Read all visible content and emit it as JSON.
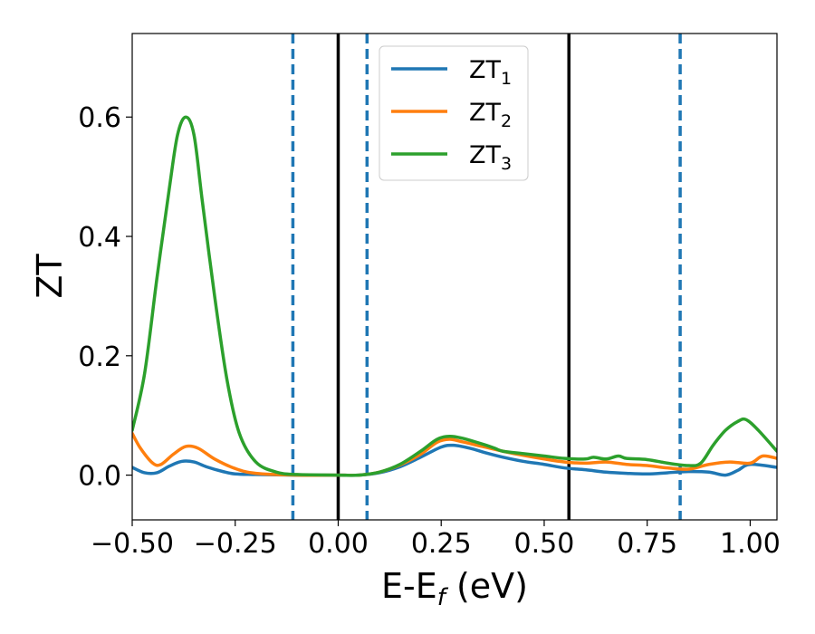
{
  "chart_data": {
    "type": "line",
    "xlabel": {
      "main": "E-E",
      "sub": "f",
      "suffix": " (eV)"
    },
    "ylabel": "ZT",
    "xlim": [
      -0.5,
      1.065
    ],
    "ylim": [
      -0.075,
      0.74
    ],
    "xticks": [
      {
        "value": -0.5,
        "label": "−0.50"
      },
      {
        "value": -0.25,
        "label": "−0.25"
      },
      {
        "value": 0.0,
        "label": "0.00"
      },
      {
        "value": 0.25,
        "label": "0.25"
      },
      {
        "value": 0.5,
        "label": "0.50"
      },
      {
        "value": 0.75,
        "label": "0.75"
      },
      {
        "value": 1.0,
        "label": "1.00"
      }
    ],
    "yticks": [
      {
        "value": 0.0,
        "label": "0.0"
      },
      {
        "value": 0.2,
        "label": "0.2"
      },
      {
        "value": 0.4,
        "label": "0.4"
      },
      {
        "value": 0.6,
        "label": "0.6"
      }
    ],
    "grid": false,
    "legend_position": "top-center",
    "vlines_solid": [
      0.0,
      0.56
    ],
    "vlines_dashed": [
      -0.11,
      0.07,
      0.83
    ],
    "series": [
      {
        "name": "ZT",
        "sub": "1",
        "color": "#1f77b4",
        "points": [
          [
            -0.5,
            0.013
          ],
          [
            -0.47,
            0.004
          ],
          [
            -0.44,
            0.004
          ],
          [
            -0.41,
            0.015
          ],
          [
            -0.38,
            0.023
          ],
          [
            -0.35,
            0.022
          ],
          [
            -0.32,
            0.014
          ],
          [
            -0.28,
            0.006
          ],
          [
            -0.25,
            0.002
          ],
          [
            -0.2,
            0.001
          ],
          [
            -0.1,
            0.0
          ],
          [
            0.0,
            0.0
          ],
          [
            0.05,
            0.0
          ],
          [
            0.1,
            0.004
          ],
          [
            0.15,
            0.014
          ],
          [
            0.2,
            0.03
          ],
          [
            0.25,
            0.047
          ],
          [
            0.28,
            0.05
          ],
          [
            0.32,
            0.045
          ],
          [
            0.36,
            0.037
          ],
          [
            0.4,
            0.03
          ],
          [
            0.45,
            0.023
          ],
          [
            0.5,
            0.018
          ],
          [
            0.55,
            0.012
          ],
          [
            0.6,
            0.009
          ],
          [
            0.65,
            0.005
          ],
          [
            0.7,
            0.003
          ],
          [
            0.75,
            0.002
          ],
          [
            0.8,
            0.004
          ],
          [
            0.85,
            0.006
          ],
          [
            0.9,
            0.005
          ],
          [
            0.94,
            0.0
          ],
          [
            0.97,
            0.008
          ],
          [
            1.0,
            0.018
          ],
          [
            1.065,
            0.013
          ]
        ]
      },
      {
        "name": "ZT",
        "sub": "2",
        "color": "#ff7f0e",
        "points": [
          [
            -0.5,
            0.07
          ],
          [
            -0.48,
            0.045
          ],
          [
            -0.45,
            0.02
          ],
          [
            -0.43,
            0.018
          ],
          [
            -0.4,
            0.035
          ],
          [
            -0.37,
            0.048
          ],
          [
            -0.34,
            0.045
          ],
          [
            -0.3,
            0.027
          ],
          [
            -0.25,
            0.011
          ],
          [
            -0.2,
            0.003
          ],
          [
            -0.1,
            0.0
          ],
          [
            0.0,
            0.0
          ],
          [
            0.05,
            0.0
          ],
          [
            0.1,
            0.005
          ],
          [
            0.15,
            0.017
          ],
          [
            0.2,
            0.035
          ],
          [
            0.24,
            0.055
          ],
          [
            0.27,
            0.06
          ],
          [
            0.3,
            0.056
          ],
          [
            0.35,
            0.048
          ],
          [
            0.4,
            0.04
          ],
          [
            0.45,
            0.033
          ],
          [
            0.5,
            0.027
          ],
          [
            0.55,
            0.022
          ],
          [
            0.6,
            0.02
          ],
          [
            0.65,
            0.022
          ],
          [
            0.7,
            0.018
          ],
          [
            0.75,
            0.016
          ],
          [
            0.8,
            0.012
          ],
          [
            0.85,
            0.01
          ],
          [
            0.9,
            0.018
          ],
          [
            0.95,
            0.022
          ],
          [
            1.0,
            0.02
          ],
          [
            1.03,
            0.032
          ],
          [
            1.065,
            0.028
          ]
        ]
      },
      {
        "name": "ZT",
        "sub": "3",
        "color": "#2ca02c",
        "points": [
          [
            -0.5,
            0.075
          ],
          [
            -0.47,
            0.17
          ],
          [
            -0.44,
            0.33
          ],
          [
            -0.41,
            0.48
          ],
          [
            -0.39,
            0.57
          ],
          [
            -0.37,
            0.6
          ],
          [
            -0.35,
            0.57
          ],
          [
            -0.33,
            0.46
          ],
          [
            -0.3,
            0.3
          ],
          [
            -0.27,
            0.16
          ],
          [
            -0.24,
            0.07
          ],
          [
            -0.2,
            0.022
          ],
          [
            -0.15,
            0.005
          ],
          [
            -0.1,
            0.001
          ],
          [
            0.0,
            0.0
          ],
          [
            0.05,
            0.0
          ],
          [
            0.1,
            0.005
          ],
          [
            0.15,
            0.018
          ],
          [
            0.2,
            0.04
          ],
          [
            0.24,
            0.06
          ],
          [
            0.27,
            0.065
          ],
          [
            0.3,
            0.062
          ],
          [
            0.35,
            0.052
          ],
          [
            0.38,
            0.045
          ],
          [
            0.4,
            0.04
          ],
          [
            0.45,
            0.036
          ],
          [
            0.5,
            0.032
          ],
          [
            0.55,
            0.028
          ],
          [
            0.6,
            0.027
          ],
          [
            0.62,
            0.03
          ],
          [
            0.65,
            0.027
          ],
          [
            0.68,
            0.032
          ],
          [
            0.7,
            0.028
          ],
          [
            0.75,
            0.026
          ],
          [
            0.8,
            0.02
          ],
          [
            0.85,
            0.016
          ],
          [
            0.88,
            0.02
          ],
          [
            0.91,
            0.05
          ],
          [
            0.94,
            0.075
          ],
          [
            0.97,
            0.09
          ],
          [
            0.99,
            0.093
          ],
          [
            1.02,
            0.075
          ],
          [
            1.065,
            0.04
          ]
        ]
      }
    ]
  }
}
